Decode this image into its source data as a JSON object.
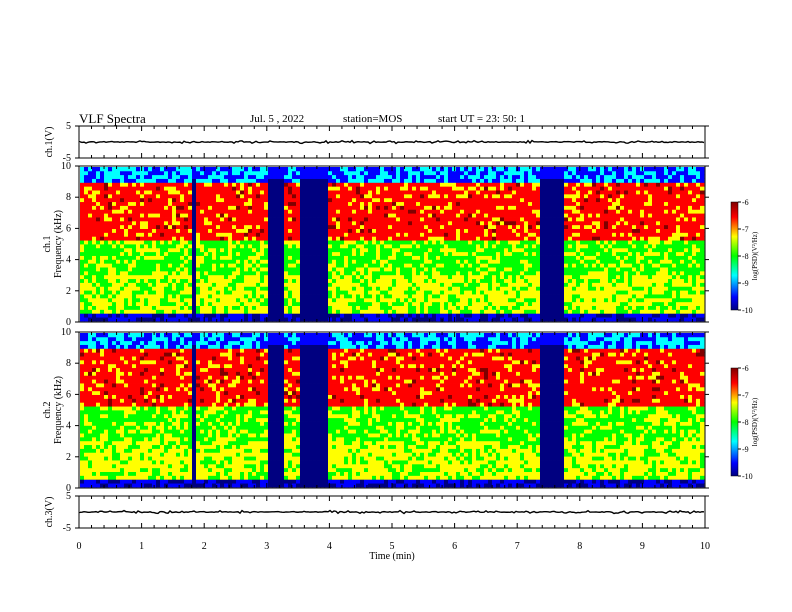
{
  "header": {
    "title": "VLF Spectra",
    "date": "Jul. 5 , 2022",
    "station": "station=MOS",
    "start": "start UT = 23: 50: 1"
  },
  "chart_data": [
    {
      "type": "line",
      "name": "ch1-waveform",
      "ylabel": "ch.1(V)",
      "ylim": [
        -5,
        5
      ],
      "yticks": [
        "5",
        "-5"
      ],
      "xlim": [
        0,
        10
      ]
    },
    {
      "type": "heatmap",
      "name": "ch1-spectrogram",
      "ylabel": "ch.1 Frequency (kHz)",
      "ylabel_line1": "ch.1",
      "ylabel_line2": "Frequency (kHz)",
      "ylim": [
        0,
        10
      ],
      "yticks": [
        "0",
        "2",
        "4",
        "6",
        "8",
        "10"
      ],
      "xlim": [
        0,
        10
      ],
      "quiet_intervals_min": [
        [
          1.78,
          1.86
        ],
        [
          3.02,
          3.3
        ],
        [
          3.55,
          3.98
        ],
        [
          7.4,
          7.78
        ]
      ],
      "colorbar": {
        "label": "log(PSD)(V²/Hz)",
        "range": [
          -10,
          -6
        ],
        "ticks": [
          "-6",
          "-7",
          "-8",
          "-9",
          "-10"
        ]
      }
    },
    {
      "type": "heatmap",
      "name": "ch2-spectrogram",
      "ylabel": "ch.2 Frequency (kHz)",
      "ylabel_line1": "ch.2",
      "ylabel_line2": "Frequency (kHz)",
      "ylim": [
        0,
        10
      ],
      "yticks": [
        "0",
        "2",
        "4",
        "6",
        "8",
        "10"
      ],
      "xlim": [
        0,
        10
      ],
      "quiet_intervals_min": [
        [
          1.78,
          1.86
        ],
        [
          3.02,
          3.3
        ],
        [
          3.55,
          3.98
        ],
        [
          7.4,
          7.78
        ]
      ],
      "colorbar": {
        "label": "log(PSD)(V²/Hz)",
        "range": [
          -10,
          -6
        ],
        "ticks": [
          "-6",
          "-7",
          "-8",
          "-9",
          "-10"
        ]
      }
    },
    {
      "type": "line",
      "name": "ch3-waveform",
      "ylabel": "ch.3(V)",
      "ylim": [
        -5,
        5
      ],
      "yticks": [
        "5",
        "-5"
      ],
      "xlim": [
        0,
        10
      ]
    }
  ],
  "xaxis": {
    "label": "Time (min)",
    "ticks": [
      "0",
      "1",
      "2",
      "3",
      "4",
      "5",
      "6",
      "7",
      "8",
      "9",
      "10"
    ]
  },
  "colors": {
    "scale": [
      "#000080",
      "#0000ff",
      "#00ffff",
      "#00ff00",
      "#ffff00",
      "#ff0000",
      "#800000"
    ]
  }
}
